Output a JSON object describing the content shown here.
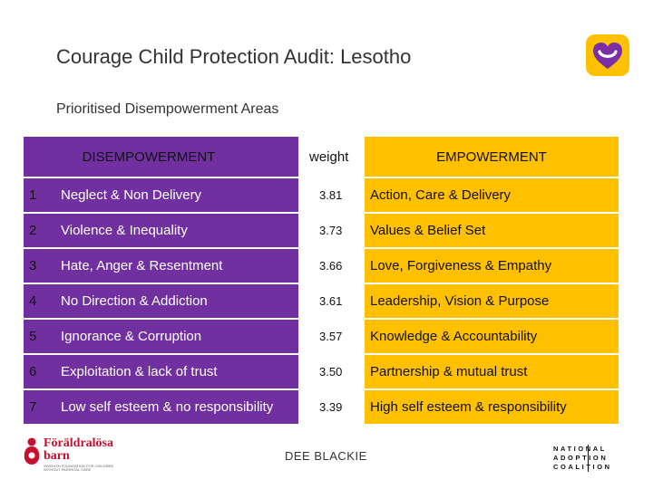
{
  "title": "Courage Child Protection Audit: Lesotho",
  "subtitle": "Prioritised Disempowerment Areas",
  "table": {
    "headers": {
      "disempowerment": "DISEMPOWERMENT",
      "weight": "weight",
      "empowerment": "EMPOWERMENT"
    },
    "rows": [
      {
        "num": "1",
        "disempowerment": "Neglect & Non Delivery",
        "weight": "3.81",
        "empowerment": "Action, Care & Delivery"
      },
      {
        "num": "2",
        "disempowerment": "Violence & Inequality",
        "weight": "3.73",
        "empowerment": "Values & Belief Set"
      },
      {
        "num": "3",
        "disempowerment": "Hate, Anger & Resentment",
        "weight": "3.66",
        "empowerment": "Love, Forgiveness & Empathy"
      },
      {
        "num": "4",
        "disempowerment": "No Direction & Addiction",
        "weight": "3.61",
        "empowerment": "Leadership, Vision & Purpose"
      },
      {
        "num": "5",
        "disempowerment": "Ignorance & Corruption",
        "weight": "3.57",
        "empowerment": "Knowledge & Accountability"
      },
      {
        "num": "6",
        "disempowerment": "Exploitation & lack of trust",
        "weight": "3.50",
        "empowerment": "Partnership & mutual trust"
      },
      {
        "num": "7",
        "disempowerment": "Low self esteem & no responsibility",
        "weight": "3.39",
        "empowerment": "High self esteem & responsibility"
      }
    ]
  },
  "footer": {
    "presenter": "DEE BLACKIE",
    "left_logo": {
      "line1": "Föräldralösa",
      "line2": "barn",
      "tagline": "SWEDISH FOUNDATION FOR CHILDREN WITHOUT PARENTAL CARE"
    },
    "right_logo": {
      "line1": "NATIONAL",
      "line2": "ADOPTION",
      "line3": "COALITION"
    }
  },
  "colors": {
    "purple": "#7030a0",
    "gold": "#ffc000",
    "heart_logo": "#ffc000"
  },
  "icons": {
    "top_right_logo": "heart-logo-icon",
    "left_logo_mark": "foraldralosa-barn-mark-icon"
  }
}
